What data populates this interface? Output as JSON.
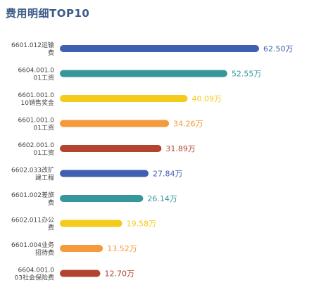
{
  "chart": {
    "title": "费用明细TOP10"
  },
  "chart_data": {
    "type": "bar",
    "orientation": "horizontal",
    "title": "费用明细TOP10",
    "xlim": [
      0,
      62.5
    ],
    "grid": false,
    "unit": "万",
    "categories": [
      [
        "6601.012运输",
        "费"
      ],
      [
        "6604.001.0",
        "01工资"
      ],
      [
        "6601.001.0",
        "10销售奖金"
      ],
      [
        "6601.001.0",
        "01工资"
      ],
      [
        "6602.001.0",
        "01工资"
      ],
      [
        "6602.033改扩",
        "建工程"
      ],
      [
        "6601.002差旅",
        "费"
      ],
      [
        "6602.011办公",
        "费"
      ],
      [
        "6601.004业务",
        "招待费"
      ],
      [
        "6604.001.0",
        "03社会保险费"
      ]
    ],
    "values": [
      62.5,
      52.55,
      40.09,
      34.26,
      31.89,
      27.84,
      26.14,
      19.58,
      13.52,
      12.7
    ],
    "value_labels": [
      "62.50万",
      "52.55万",
      "40.09万",
      "34.26万",
      "31.89万",
      "27.84万",
      "26.14万",
      "19.58万",
      "13.52万",
      "12.70万"
    ],
    "colors": [
      "#3f5fb0",
      "#35979c",
      "#f4cb1a",
      "#f59a3c",
      "#b2432f",
      "#3f5fb0",
      "#35979c",
      "#f4cb1a",
      "#f59a3c",
      "#b2432f"
    ]
  }
}
